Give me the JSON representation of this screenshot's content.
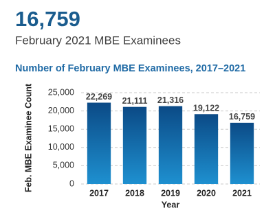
{
  "header": {
    "value": "16,759",
    "subtitle": "February 2021 MBE Examinees"
  },
  "chart_data": {
    "type": "bar",
    "title": "Number of February MBE Examinees, 2017–2021",
    "x_label": "Year",
    "y_label": "Feb. MBE Examinee Count",
    "categories": [
      "2017",
      "2018",
      "2019",
      "2020",
      "2021"
    ],
    "values": [
      22269,
      21111,
      21316,
      19122,
      16759
    ],
    "value_labels": [
      "22,269",
      "21,111",
      "21,316",
      "19,122",
      "16,759"
    ],
    "color": "#0b4a86",
    "ylim": [
      0,
      25000
    ],
    "yticks": [
      0,
      {
        "value": 5000,
        "label": "5,000"
      },
      {
        "value": 10000,
        "label": "10,000"
      },
      {
        "value": 15000,
        "label": "15,000"
      },
      {
        "value": 20000,
        "label": "20,000"
      },
      {
        "value": 25000,
        "label": "25,000"
      }
    ],
    "grid": true
  }
}
